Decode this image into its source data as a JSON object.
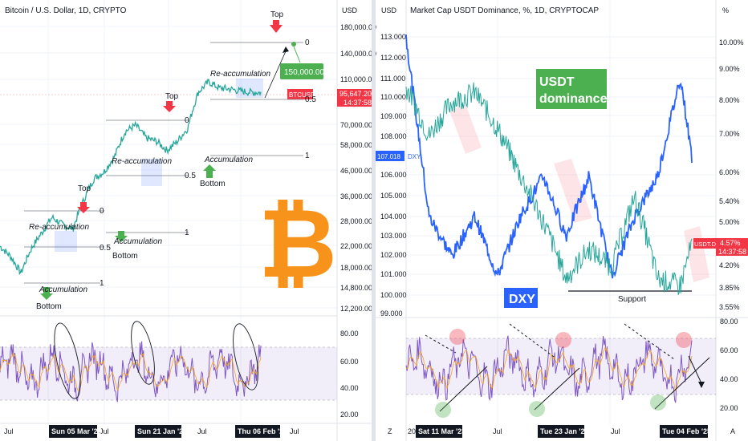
{
  "left": {
    "title": "Bitcoin / U.S. Dollar, 1D, CRYPTO",
    "axis_unit": "USD",
    "price_ticks": [
      "180,000.00",
      "140,000.00",
      "110,000.00",
      "70,000.00",
      "58,000.00",
      "46,000.00",
      "36,000.00",
      "28,000.00",
      "22,000.00",
      "18,000.00",
      "14,800.00",
      "12,200.00"
    ],
    "rsi_ticks": [
      "80.00",
      "60.00",
      "40.00",
      "20.00"
    ],
    "x_ticks": [
      "Jul",
      "Jul",
      "Jul",
      "Jul"
    ],
    "date_badges": [
      "Sun 05 Mar '23",
      "Sun 21 Jan '24",
      "Thu 06 Feb '25"
    ],
    "price_label": {
      "symbol": "BTCUSD",
      "value": "95,647.20",
      "countdown": "14:37:58",
      "color": "#f23645"
    },
    "annotations": {
      "top1": "Top",
      "top2": "Top",
      "top3": "Top",
      "reacc1": "Re-accumulation",
      "reacc2": "Re-accumulation",
      "reacc3": "Re-accumulation",
      "acc1": "Accumulation",
      "acc2": "Accumulation",
      "acc3": "Accumulation",
      "bottom1": "Bottom",
      "bottom2": "Bottom",
      "bottom3": "Bottom",
      "target": "150,000.00"
    },
    "fib_levels": {
      "l0": "0",
      "l05": "0.5",
      "l1": "1"
    }
  },
  "right": {
    "title": "Market Cap USDT Dominance, %, 1D, CRYPTOCAP",
    "left_axis_unit": "USD",
    "right_axis_unit": "%",
    "dxy_ticks": [
      "113.000",
      "112.000",
      "111.000",
      "110.000",
      "109.000",
      "108.000",
      "106.000",
      "105.000",
      "104.000",
      "103.000",
      "102.000",
      "101.000",
      "100.000",
      "99.000"
    ],
    "pct_ticks": [
      "10.00%",
      "9.00%",
      "8.00%",
      "7.00%",
      "6.00%",
      "5.40%",
      "5.00%",
      "4.20%",
      "3.85%",
      "3.55%"
    ],
    "rsi_ticks": [
      "80.00",
      "60.00",
      "40.00",
      "20.00"
    ],
    "x_ticks": [
      "20",
      "Jul",
      "Jul"
    ],
    "date_badges": [
      "Sat 11 Mar '23",
      "Tue 23 Jan '24",
      "Tue 04 Feb '25"
    ],
    "dxy_label": {
      "value": "107.018",
      "symbol": "DXY",
      "color": "#2962ff"
    },
    "usdt_label": {
      "symbol": "USDT.D",
      "value": "4.57%",
      "countdown": "14:37:58",
      "color": "#f23645"
    },
    "usdt_box": {
      "line1": "USDT",
      "line2": "dominance",
      "color": "#4caf50"
    },
    "dxy_box": {
      "text": "DXY",
      "color": "#2962ff"
    },
    "support": "Support",
    "corner_left": "Z",
    "corner_right": "A"
  },
  "chart_data": [
    {
      "type": "line",
      "title": "Bitcoin / U.S. Dollar, 1D, CRYPTO",
      "series": [
        {
          "name": "BTCUSD",
          "x": [
            0,
            4,
            8,
            12,
            16,
            20,
            24,
            28,
            32,
            36,
            40,
            44,
            48,
            52,
            56,
            60,
            64,
            68,
            72,
            76,
            80,
            84,
            88,
            92,
            96,
            100
          ],
          "values": [
            22000,
            20000,
            17000,
            21500,
            25000,
            29000,
            27000,
            26000,
            34000,
            42000,
            45000,
            52000,
            66000,
            70000,
            62000,
            60000,
            55000,
            60000,
            68000,
            96000,
            106000,
            100000,
            99000,
            97000,
            96000,
            95647
          ]
        }
      ],
      "log_scale": true,
      "ylim": [
        12200,
        180000
      ]
    },
    {
      "type": "line",
      "title": "Market Cap USDT Dominance, %, 1D, CRYPTOCAP",
      "series": [
        {
          "name": "DXY",
          "x": [
            0,
            8,
            16,
            24,
            32,
            40,
            48,
            56,
            64,
            72,
            80,
            88,
            96,
            100
          ],
          "values": [
            113,
            104,
            102,
            104,
            101,
            104,
            106,
            103,
            106,
            101,
            104,
            106,
            111,
            107.018
          ]
        },
        {
          "name": "USDT.D",
          "x": [
            0,
            8,
            16,
            24,
            32,
            40,
            48,
            56,
            64,
            72,
            80,
            88,
            96,
            100
          ],
          "values": [
            8.5,
            7.0,
            8.0,
            8.3,
            7.2,
            6.0,
            5.0,
            4.0,
            4.5,
            4.2,
            5.5,
            4.0,
            3.9,
            4.57
          ]
        }
      ]
    }
  ]
}
